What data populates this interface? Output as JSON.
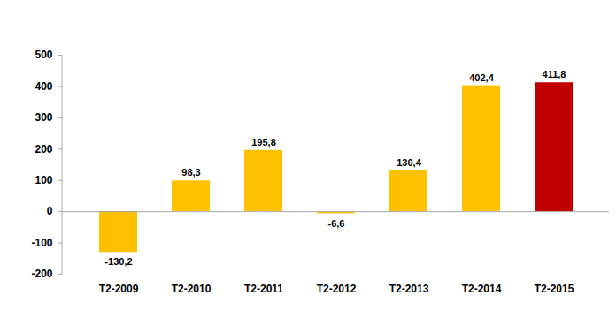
{
  "chart_data": {
    "type": "bar",
    "categories": [
      "T2-2009",
      "T2-2010",
      "T2-2011",
      "T2-2012",
      "T2-2013",
      "T2-2014",
      "T2-2015"
    ],
    "values": [
      -130.2,
      98.3,
      195.8,
      -6.6,
      130.4,
      402.4,
      411.8
    ],
    "value_labels": [
      "-130,2",
      "98,3",
      "195,8",
      "-6,6",
      "130,4",
      "402,4",
      "411,8"
    ],
    "colors": [
      "#FFC000",
      "#FFC000",
      "#FFC000",
      "#FFC000",
      "#FFC000",
      "#FFC000",
      "#C00000"
    ],
    "ylim": [
      -200,
      500
    ],
    "yticks": [
      -200,
      -100,
      0,
      100,
      200,
      300,
      400,
      500
    ],
    "grid": false,
    "data_labels": true
  }
}
